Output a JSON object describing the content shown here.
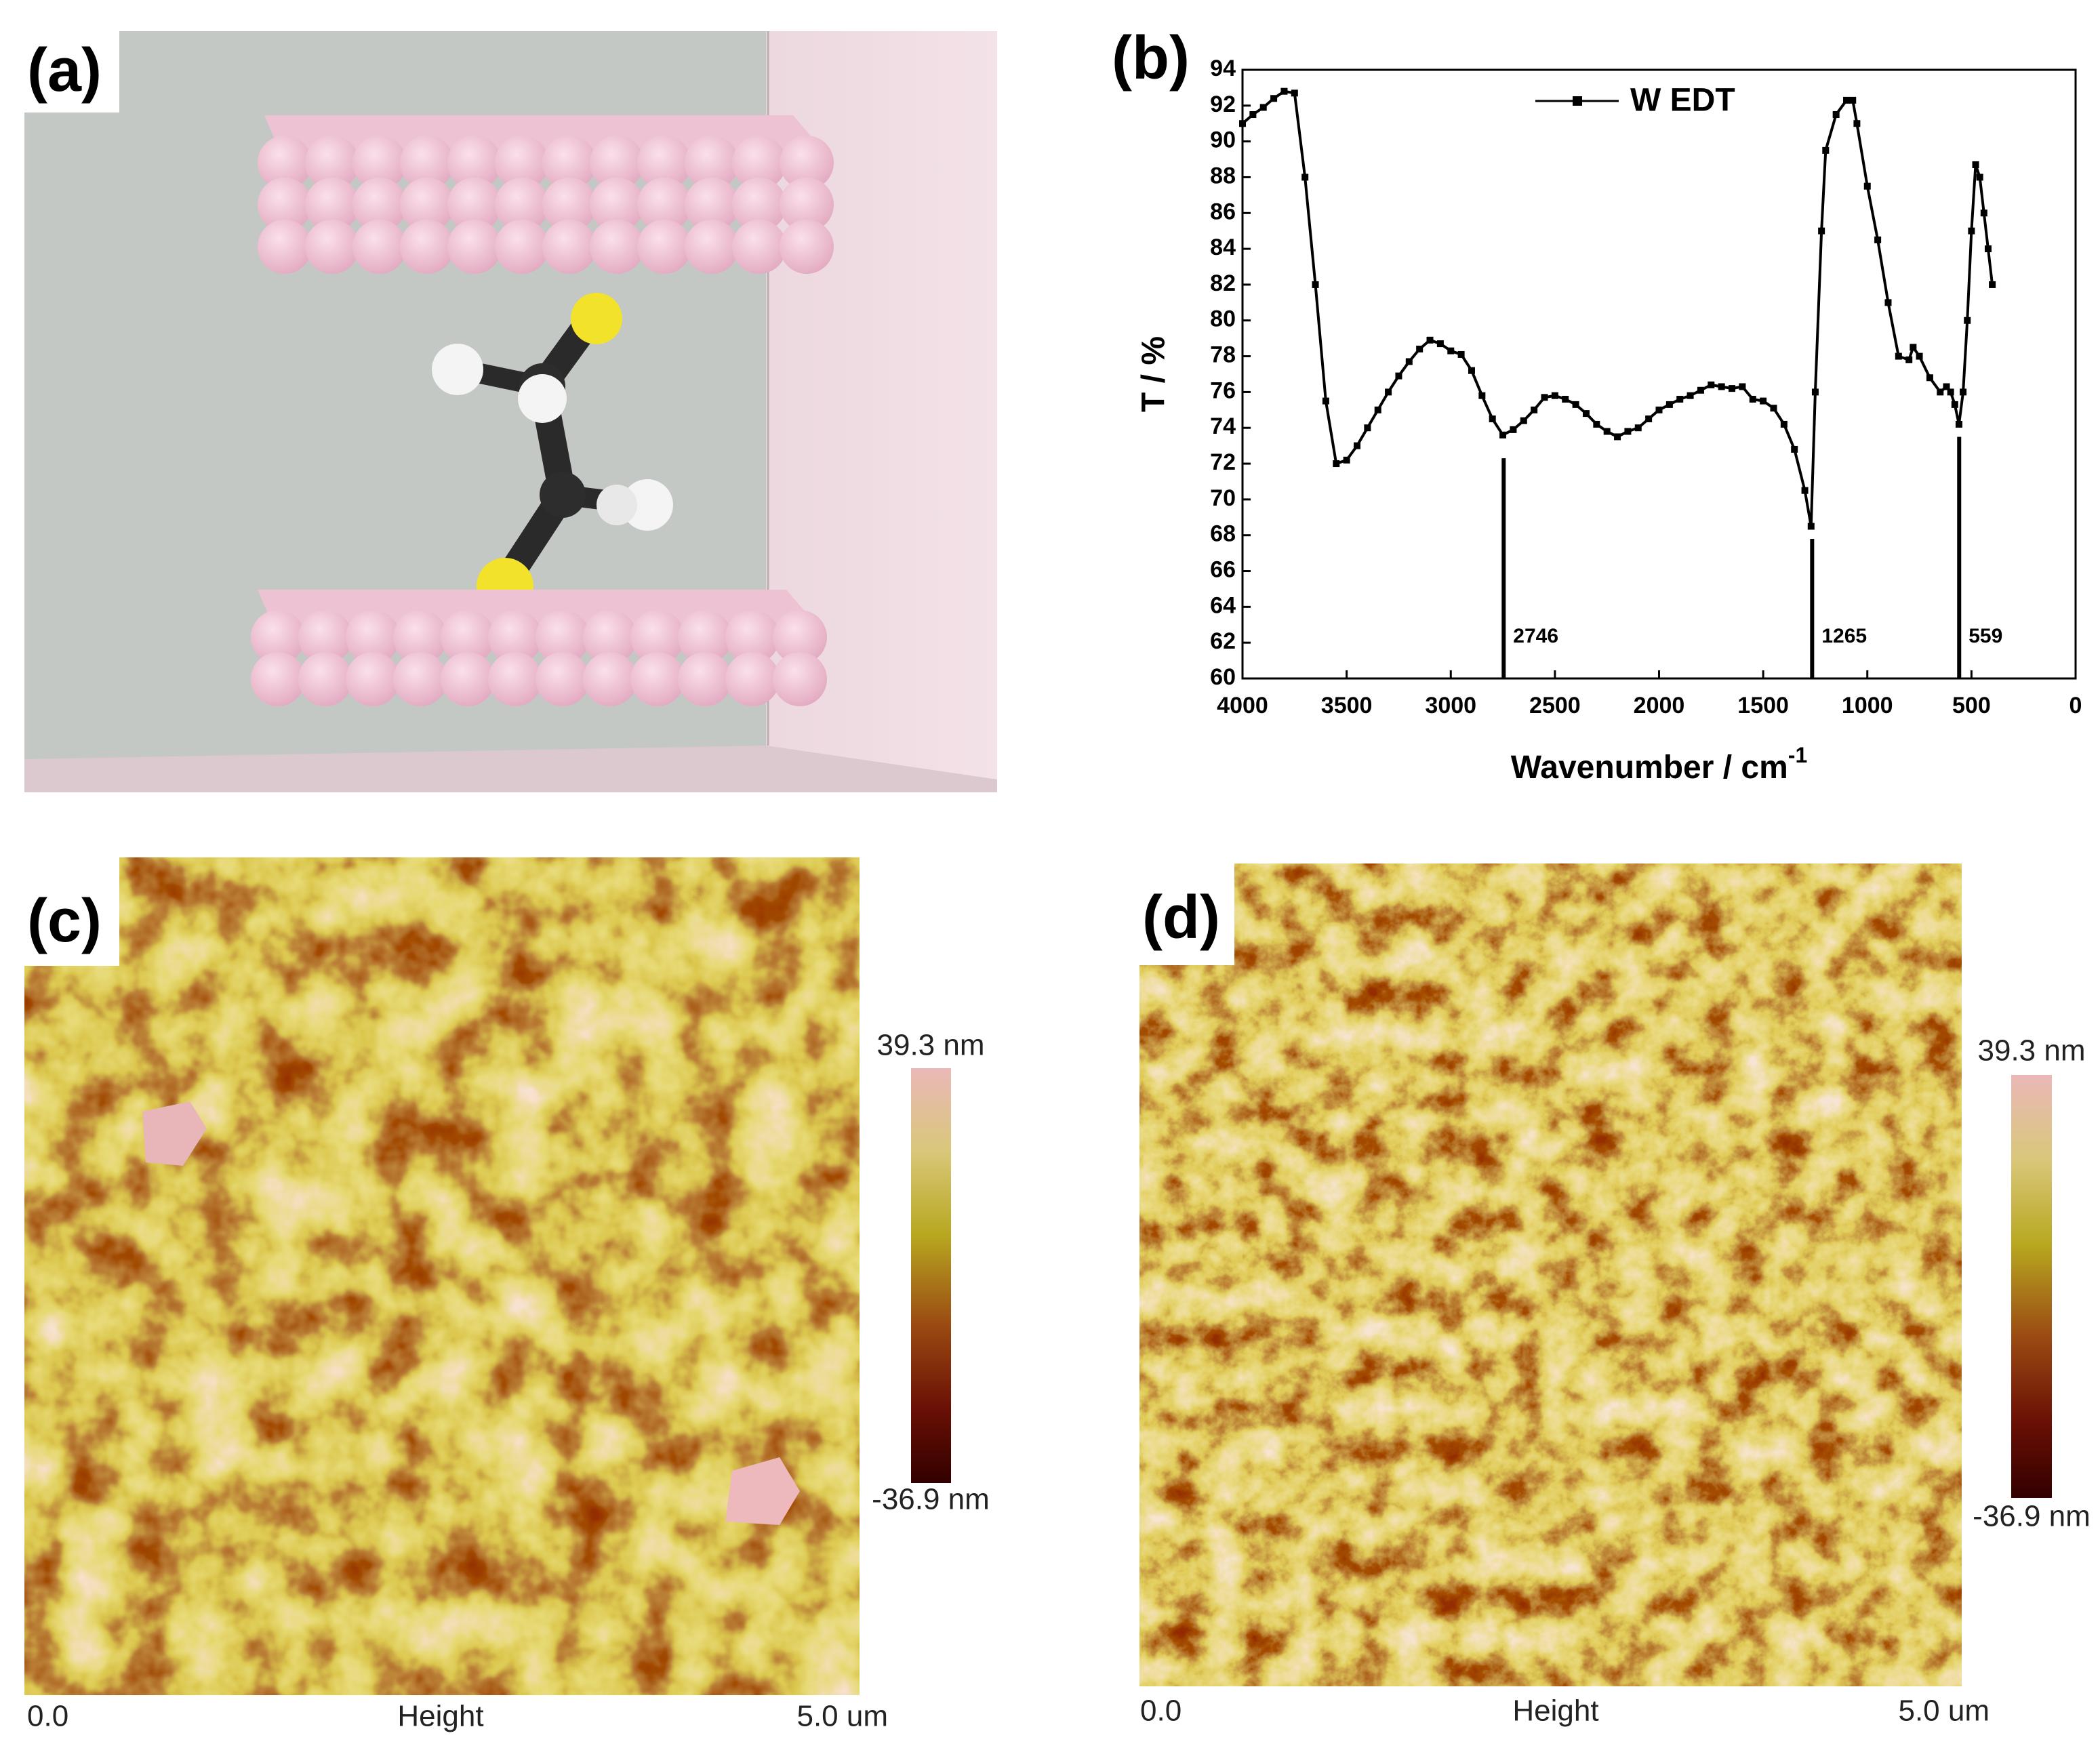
{
  "panel_labels": [
    "(a)",
    "(b)",
    "(c)",
    "(d)"
  ],
  "chart_data": {
    "type": "line",
    "x_label": "Wavenumber / cm",
    "x_label_superscript": "-1",
    "y_label": "T / %",
    "xlim": [
      4000,
      0
    ],
    "ylim": [
      60,
      94
    ],
    "xticks": [
      4000,
      3500,
      3000,
      2500,
      2000,
      1500,
      1000,
      500,
      0
    ],
    "yticks": [
      60,
      62,
      64,
      66,
      68,
      70,
      72,
      74,
      76,
      78,
      80,
      82,
      84,
      86,
      88,
      90,
      92,
      94
    ],
    "legend": "top",
    "x": [
      4000,
      3950,
      3900,
      3850,
      3800,
      3750,
      3700,
      3650,
      3600,
      3550,
      3500,
      3450,
      3400,
      3350,
      3300,
      3250,
      3200,
      3150,
      3100,
      3050,
      3000,
      2950,
      2900,
      2850,
      2800,
      2750,
      2700,
      2650,
      2600,
      2550,
      2500,
      2450,
      2400,
      2350,
      2300,
      2250,
      2200,
      2150,
      2100,
      2050,
      2000,
      1950,
      1900,
      1850,
      1800,
      1750,
      1700,
      1650,
      1600,
      1550,
      1500,
      1450,
      1400,
      1350,
      1300,
      1270,
      1250,
      1220,
      1200,
      1150,
      1100,
      1070,
      1050,
      1000,
      950,
      900,
      850,
      800,
      780,
      750,
      700,
      650,
      620,
      600,
      580,
      560,
      540,
      520,
      500,
      480,
      460,
      440,
      420,
      400
    ],
    "series": [
      {
        "name": "W EDT",
        "color": "#000000",
        "values": [
          91.0,
          91.5,
          91.9,
          92.4,
          92.8,
          92.7,
          88.0,
          82.0,
          75.5,
          72.0,
          72.2,
          73.0,
          74.0,
          75.0,
          76.0,
          76.9,
          77.7,
          78.4,
          78.9,
          78.7,
          78.3,
          78.1,
          77.2,
          75.8,
          74.5,
          73.6,
          73.9,
          74.4,
          75.0,
          75.7,
          75.8,
          75.6,
          75.3,
          74.8,
          74.2,
          73.8,
          73.5,
          73.8,
          74.0,
          74.5,
          75.0,
          75.3,
          75.6,
          75.8,
          76.1,
          76.4,
          76.3,
          76.2,
          76.3,
          75.6,
          75.5,
          75.1,
          74.2,
          72.8,
          70.5,
          68.5,
          76.0,
          85.0,
          89.5,
          91.5,
          92.3,
          92.3,
          91.0,
          87.5,
          84.5,
          81.0,
          78.0,
          77.8,
          78.5,
          78.0,
          76.8,
          76.0,
          76.3,
          76.0,
          75.3,
          74.2,
          76.0,
          80.0,
          85.0,
          88.7,
          88.0,
          86.0,
          84.0,
          82.0
        ]
      }
    ],
    "annotations": [
      {
        "x": 2746,
        "y": 72.3
      },
      {
        "x": 1265,
        "y": 67.8
      },
      {
        "x": 559,
        "y": 73.5
      }
    ]
  },
  "afm": [
    {
      "scale_max": "39.3 nm",
      "scale_min": "-36.9 nm",
      "x_start": "0.0",
      "x_label": "Height",
      "x_end": "5.0 um"
    },
    {
      "scale_max": "39.3 nm",
      "scale_min": "-36.9 nm",
      "x_start": "0.0",
      "x_label": "Height",
      "x_end": "5.0 um"
    }
  ]
}
